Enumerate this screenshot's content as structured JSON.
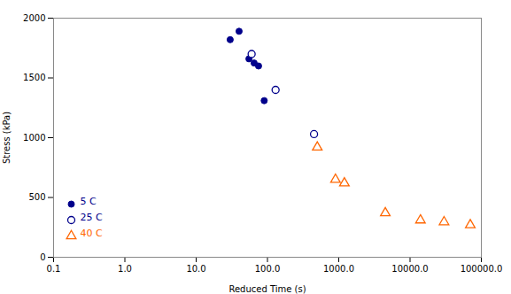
{
  "chart_data": {
    "type": "scatter",
    "xlabel": "Reduced Time (s)",
    "ylabel": "Stress (kPa)",
    "log": "x",
    "xlim": [
      0.1,
      100000.0
    ],
    "ylim": [
      0,
      2000
    ],
    "xticks": [
      0.1,
      {
        "value": 1,
        "label": "1.0"
      },
      {
        "value": 10,
        "label": "10.0"
      },
      {
        "value": 100,
        "label": "100.0"
      },
      {
        "value": 1000,
        "label": "1000.0"
      },
      {
        "value": 10000,
        "label": "10000.0"
      },
      {
        "value": 100000,
        "label": "100000.0"
      }
    ],
    "yticks": [
      0,
      500,
      1000,
      1500,
      2000
    ],
    "grid": false,
    "legend": "lower left",
    "series": [
      {
        "name": "5 C",
        "color": "#00008B",
        "marker": "circle",
        "x": [
          30,
          40,
          55,
          65,
          75,
          90
        ],
        "values": [
          1820,
          1890,
          1660,
          1625,
          1600,
          1310
        ]
      },
      {
        "name": "25 C",
        "color": "#00008B",
        "marker": "open-circle",
        "x": [
          60,
          130,
          450
        ],
        "values": [
          1700,
          1400,
          1030
        ]
      },
      {
        "name": "40 C",
        "color": "#FF6600",
        "marker": "open-triangle",
        "x": [
          500,
          900,
          1200,
          4500,
          14000,
          30000,
          70000
        ],
        "values": [
          920,
          650,
          620,
          370,
          310,
          295,
          270
        ]
      }
    ]
  }
}
